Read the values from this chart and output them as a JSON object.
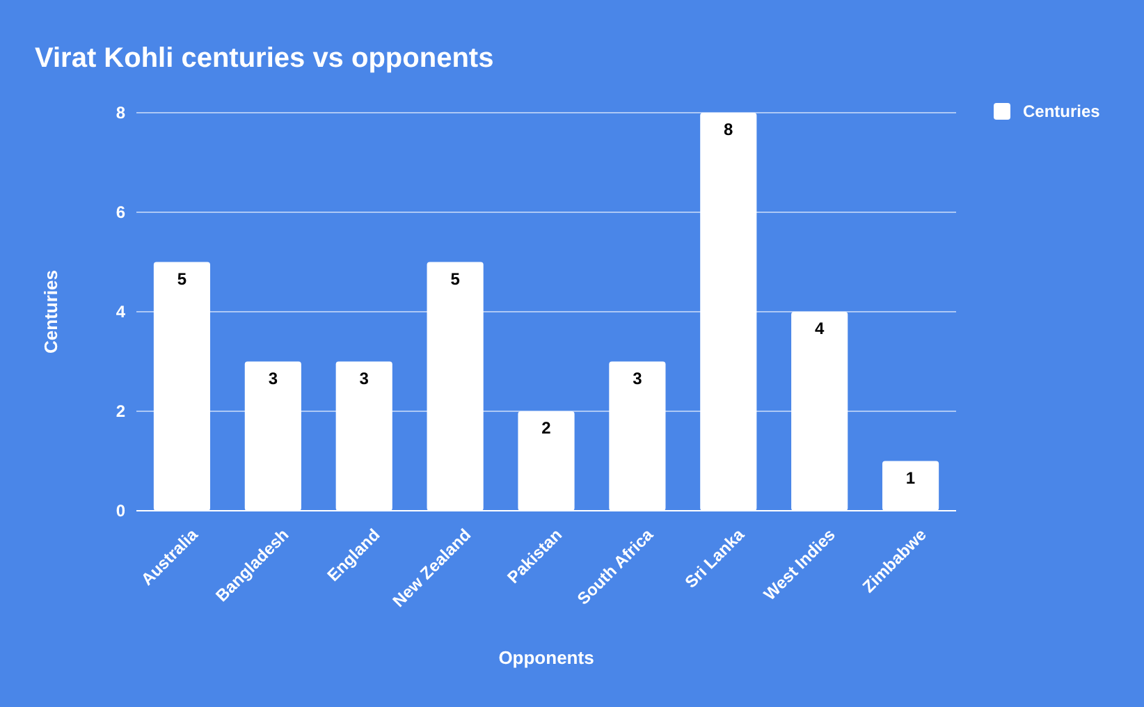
{
  "chart_data": {
    "type": "bar",
    "title": "Virat Kohli centuries vs opponents",
    "xlabel": "Opponents",
    "ylabel": "Centuries",
    "categories": [
      "Australia",
      "Bangladesh",
      "England",
      "New Zealand",
      "Pakistan",
      "South Africa",
      "Sri Lanka",
      "West Indies",
      "Zimbabwe"
    ],
    "series": [
      {
        "name": "Centuries",
        "color": "#ffffff",
        "values": [
          5,
          3,
          3,
          5,
          2,
          3,
          8,
          4,
          1
        ]
      }
    ],
    "ylim": [
      0,
      8
    ],
    "yticks": [
      0,
      2,
      4,
      6,
      8
    ],
    "grid": "y",
    "legend": "top right",
    "data_labels": true
  }
}
